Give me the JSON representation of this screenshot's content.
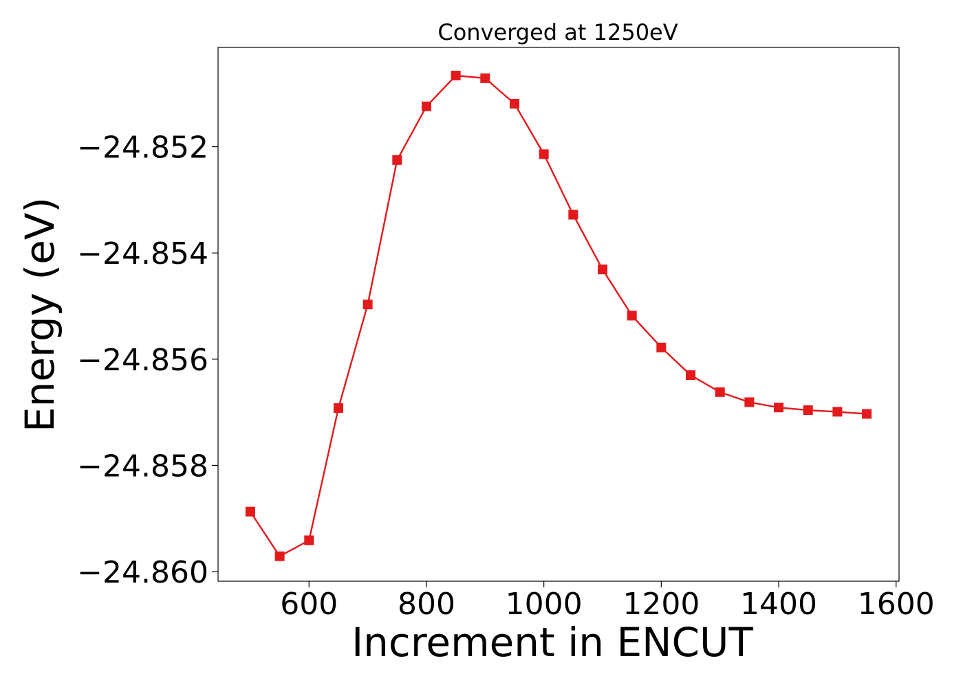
{
  "chart_data": {
    "type": "line",
    "title": "Converged at 1250eV",
    "xlabel": "Increment in ENCUT",
    "ylabel": "Energy (eV)",
    "xlim": [
      445,
      1605
    ],
    "ylim": [
      -24.86018,
      -24.85013
    ],
    "x_ticks": [
      600,
      800,
      1000,
      1200,
      1400,
      1600
    ],
    "x_tick_labels": [
      "600",
      "800",
      "1000",
      "1200",
      "1400",
      "1600"
    ],
    "y_ticks": [
      -24.852,
      -24.854,
      -24.856,
      -24.858,
      -24.86
    ],
    "y_tick_labels": [
      "−24.852",
      "−24.854",
      "−24.856",
      "−24.858",
      "−24.860"
    ],
    "grid": false,
    "series": [
      {
        "color": "#e31a1c",
        "marker": "square",
        "x": [
          500,
          550,
          600,
          650,
          700,
          750,
          800,
          850,
          900,
          950,
          1000,
          1050,
          1100,
          1150,
          1200,
          1250,
          1300,
          1350,
          1400,
          1450,
          1500,
          1550
        ],
        "y": [
          -24.85887,
          -24.85971,
          -24.85941,
          -24.85692,
          -24.85497,
          -24.85225,
          -24.85124,
          -24.85066,
          -24.85071,
          -24.85119,
          -24.85214,
          -24.85328,
          -24.85431,
          -24.85518,
          -24.85578,
          -24.8563,
          -24.85662,
          -24.85681,
          -24.85691,
          -24.85696,
          -24.85699,
          -24.85703
        ]
      }
    ]
  }
}
